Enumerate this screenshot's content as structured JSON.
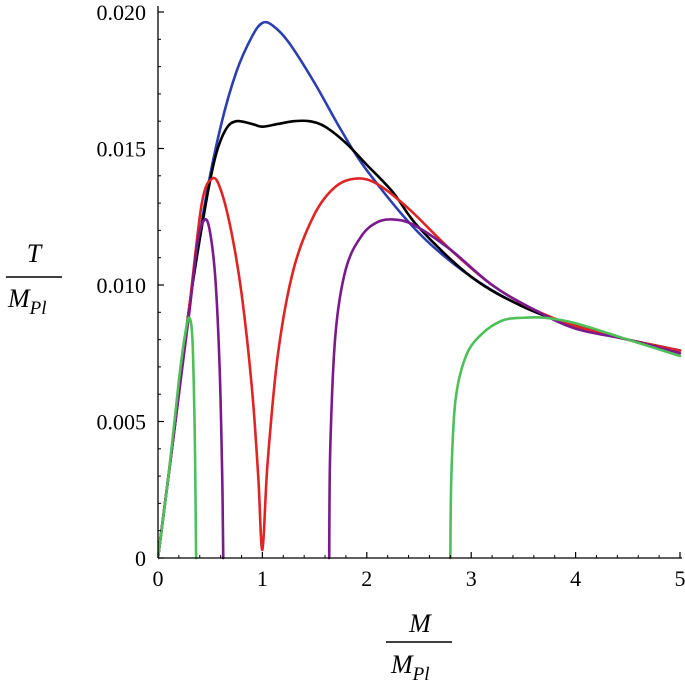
{
  "chart_data": {
    "type": "line",
    "xlim": [
      0,
      5
    ],
    "ylim": [
      0,
      0.02
    ],
    "x_ticks": [
      "0",
      "1",
      "2",
      "3",
      "4",
      "5"
    ],
    "y_ticks": [
      "0",
      "0.005",
      "0.010",
      "0.015",
      "0.020"
    ],
    "xlabel": {
      "num": "M",
      "den_base": "M",
      "den_sub": "Pl"
    },
    "ylabel": {
      "num": "T",
      "den_base": "M",
      "den_sub": "Pl"
    },
    "grid": false,
    "legend": "none",
    "series": [
      {
        "color": "#2b3fb0",
        "points": [
          [
            0,
            0
          ],
          [
            0.15,
            0.0045
          ],
          [
            0.3,
            0.0092
          ],
          [
            0.45,
            0.013
          ],
          [
            0.6,
            0.0158
          ],
          [
            0.75,
            0.0178
          ],
          [
            0.9,
            0.0191
          ],
          [
            1.0,
            0.0196
          ],
          [
            1.1,
            0.0195
          ],
          [
            1.25,
            0.0189
          ],
          [
            1.5,
            0.0174
          ],
          [
            1.75,
            0.0157
          ],
          [
            2.0,
            0.0142
          ],
          [
            2.5,
            0.0119
          ],
          [
            3.0,
            0.0103
          ],
          [
            3.5,
            0.0092
          ],
          [
            4.0,
            0.0085
          ],
          [
            4.5,
            0.008
          ],
          [
            5.0,
            0.0076
          ]
        ]
      },
      {
        "color": "#000000",
        "points": [
          [
            0,
            0
          ],
          [
            0.15,
            0.0045
          ],
          [
            0.3,
            0.0092
          ],
          [
            0.45,
            0.0128
          ],
          [
            0.55,
            0.0147
          ],
          [
            0.65,
            0.0157
          ],
          [
            0.75,
            0.016
          ],
          [
            0.9,
            0.0159
          ],
          [
            1.0,
            0.0158
          ],
          [
            1.15,
            0.0159
          ],
          [
            1.3,
            0.016
          ],
          [
            1.45,
            0.016
          ],
          [
            1.6,
            0.0158
          ],
          [
            1.8,
            0.0152
          ],
          [
            2.0,
            0.0144
          ],
          [
            2.25,
            0.0134
          ],
          [
            2.5,
            0.0121
          ],
          [
            3.0,
            0.0103
          ],
          [
            3.5,
            0.0092
          ],
          [
            4.0,
            0.0085
          ],
          [
            4.5,
            0.008
          ],
          [
            5.0,
            0.0076
          ]
        ]
      },
      {
        "color": "#e02424",
        "points": [
          [
            0,
            0
          ],
          [
            0.15,
            0.0045
          ],
          [
            0.3,
            0.0092
          ],
          [
            0.42,
            0.013
          ],
          [
            0.52,
            0.0139
          ],
          [
            0.6,
            0.0135
          ],
          [
            0.7,
            0.012
          ],
          [
            0.8,
            0.0097
          ],
          [
            0.9,
            0.0062
          ],
          [
            0.96,
            0.003
          ],
          [
            1.0,
            0.0003
          ],
          [
            1.05,
            0.0035
          ],
          [
            1.15,
            0.0075
          ],
          [
            1.3,
            0.0106
          ],
          [
            1.5,
            0.0126
          ],
          [
            1.7,
            0.0136
          ],
          [
            1.9,
            0.0139
          ],
          [
            2.1,
            0.0137
          ],
          [
            2.4,
            0.0128
          ],
          [
            2.8,
            0.0113
          ],
          [
            3.2,
            0.01
          ],
          [
            3.6,
            0.0091
          ],
          [
            4.0,
            0.0085
          ],
          [
            4.5,
            0.008
          ],
          [
            5.0,
            0.0076
          ]
        ]
      },
      {
        "color": "#7a1a8c",
        "points": [
          [
            0,
            0
          ],
          [
            0.15,
            0.0045
          ],
          [
            0.3,
            0.009
          ],
          [
            0.38,
            0.0116
          ],
          [
            0.45,
            0.0124
          ],
          [
            0.5,
            0.0119
          ],
          [
            0.55,
            0.0102
          ],
          [
            0.59,
            0.007
          ],
          [
            0.615,
            0.003
          ],
          [
            0.625,
            0.0
          ]
        ]
      },
      {
        "color": "#7a1a8c",
        "points": [
          [
            1.64,
            0.0
          ],
          [
            1.65,
            0.004
          ],
          [
            1.7,
            0.0082
          ],
          [
            1.8,
            0.0106
          ],
          [
            1.95,
            0.0118
          ],
          [
            2.1,
            0.0123
          ],
          [
            2.25,
            0.0124
          ],
          [
            2.45,
            0.0122
          ],
          [
            2.8,
            0.0113
          ],
          [
            3.2,
            0.01
          ],
          [
            3.6,
            0.0091
          ],
          [
            4.0,
            0.0084
          ],
          [
            4.5,
            0.008
          ],
          [
            5.0,
            0.0075
          ]
        ]
      },
      {
        "color": "#4fbf5a",
        "points": [
          [
            0,
            0
          ],
          [
            0.1,
            0.003
          ],
          [
            0.2,
            0.0065
          ],
          [
            0.26,
            0.0082
          ],
          [
            0.3,
            0.0088
          ],
          [
            0.33,
            0.008
          ],
          [
            0.35,
            0.005
          ],
          [
            0.36,
            0.002
          ],
          [
            0.365,
            0.0
          ]
        ]
      },
      {
        "color": "#4fbf5a",
        "points": [
          [
            2.8,
            0.0
          ],
          [
            2.81,
            0.003
          ],
          [
            2.85,
            0.0058
          ],
          [
            2.95,
            0.0074
          ],
          [
            3.1,
            0.0082
          ],
          [
            3.3,
            0.0087
          ],
          [
            3.5,
            0.0088
          ],
          [
            3.7,
            0.0088
          ],
          [
            4.0,
            0.0086
          ],
          [
            4.5,
            0.008
          ],
          [
            5.0,
            0.0074
          ]
        ]
      }
    ]
  }
}
